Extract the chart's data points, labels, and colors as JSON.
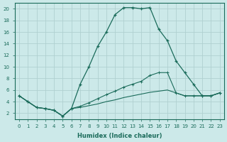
{
  "xlabel": "Humidex (Indice chaleur)",
  "ylabel": "",
  "bg_color": "#cce9e9",
  "grid_color": "#b0d0d0",
  "line_color": "#1a6b5a",
  "xlim": [
    -0.5,
    23.5
  ],
  "ylim": [
    1.0,
    21.0
  ],
  "xticks": [
    0,
    1,
    2,
    3,
    4,
    5,
    6,
    7,
    8,
    9,
    10,
    11,
    12,
    13,
    14,
    15,
    16,
    17,
    18,
    19,
    20,
    21,
    22,
    23
  ],
  "yticks": [
    2,
    4,
    6,
    8,
    10,
    12,
    14,
    16,
    18,
    20
  ],
  "curve1_x": [
    0,
    1,
    2,
    3,
    4,
    5,
    6,
    7,
    8,
    9,
    10,
    11,
    12,
    13,
    14,
    15,
    16,
    17,
    18,
    19,
    20,
    21,
    22,
    23
  ],
  "curve1_y": [
    5.0,
    4.0,
    3.0,
    2.8,
    2.5,
    1.5,
    2.8,
    7.0,
    10.0,
    13.5,
    16.0,
    19.0,
    20.2,
    20.2,
    20.0,
    20.2,
    16.5,
    14.5,
    11.0,
    9.0,
    7.0,
    5.0,
    5.0,
    5.5
  ],
  "curve2_x": [
    0,
    1,
    2,
    3,
    4,
    5,
    6,
    7,
    8,
    9,
    10,
    11,
    12,
    13,
    14,
    15,
    16,
    17,
    18,
    19,
    20,
    21,
    22,
    23
  ],
  "curve2_y": [
    5.0,
    4.0,
    3.0,
    2.8,
    2.5,
    1.5,
    2.8,
    3.2,
    3.8,
    4.5,
    5.2,
    5.8,
    6.5,
    7.0,
    7.5,
    8.5,
    9.0,
    9.0,
    5.5,
    5.0,
    5.0,
    5.0,
    5.0,
    5.5
  ],
  "curve3_x": [
    0,
    1,
    2,
    3,
    4,
    5,
    6,
    7,
    8,
    9,
    10,
    11,
    12,
    13,
    14,
    15,
    16,
    17,
    18,
    19,
    20,
    21,
    22,
    23
  ],
  "curve3_y": [
    5.0,
    4.0,
    3.0,
    2.8,
    2.5,
    1.5,
    2.8,
    3.0,
    3.3,
    3.6,
    4.0,
    4.3,
    4.7,
    5.0,
    5.3,
    5.6,
    5.8,
    6.0,
    5.5,
    5.0,
    5.0,
    5.0,
    5.0,
    5.5
  ]
}
